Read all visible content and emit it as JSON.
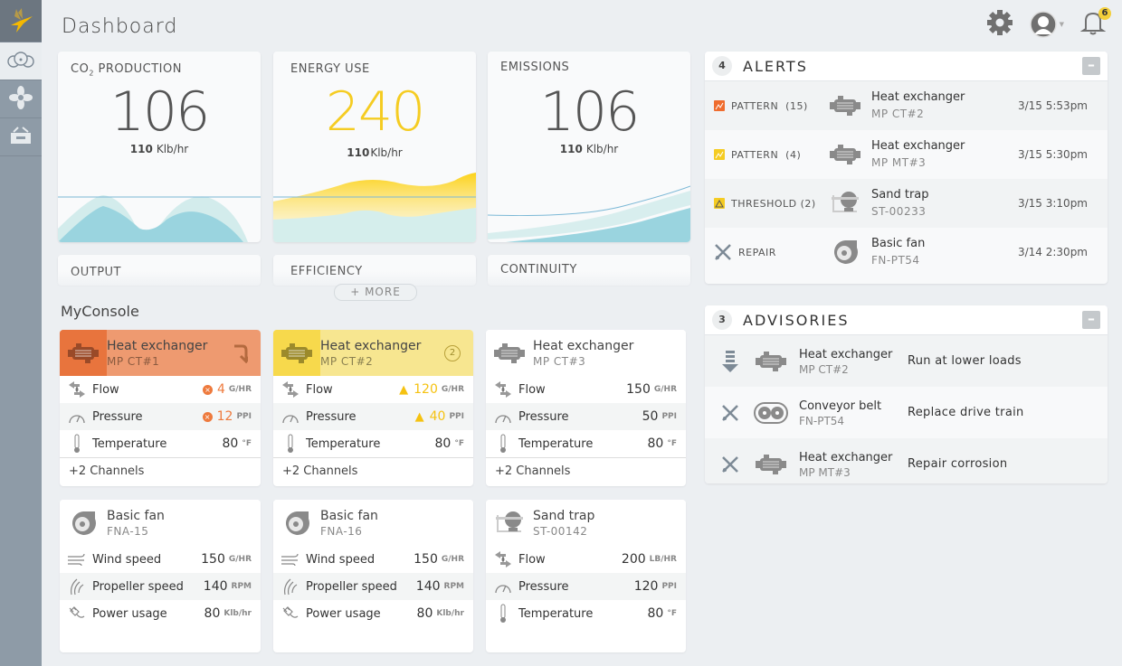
{
  "header": {
    "title": "Dashboard",
    "notifications": "6"
  },
  "sidebar": {
    "items": [
      {
        "icon": "hummingbird-logo-icon"
      },
      {
        "icon": "gauges-icon",
        "active": true
      },
      {
        "icon": "fan-icon"
      },
      {
        "icon": "toolbox-icon"
      }
    ]
  },
  "kpis": [
    {
      "label": "CO",
      "label_sub": "2",
      "label_rest": " PRODUCTION",
      "value": "106",
      "sub_value": "110",
      "unit": "Klb/hr",
      "color": "#555555"
    },
    {
      "label": "ENERGY USE",
      "value": "240",
      "sub_value": "110",
      "unit": "Klb/hr",
      "color": "#f5cc22"
    },
    {
      "label": "EMISSIONS",
      "value": "106",
      "sub_value": "110",
      "unit": "Klb/hr",
      "color": "#555555"
    }
  ],
  "kpis_more": [
    "OUTPUT",
    "EFFICIENCY",
    "CONTINUITY"
  ],
  "more_label": "+ MORE",
  "console": {
    "title": "MyConsole",
    "cards": [
      {
        "name": "Heat exchanger",
        "id": "MP CT#1",
        "icon": "heat-exchanger-icon",
        "status": "error",
        "action": "refresh-icon",
        "rows": [
          {
            "icon": "flow-icon",
            "label": "Flow",
            "value": "4",
            "unit": "G/HR",
            "flag": "error"
          },
          {
            "icon": "pressure-gauge-icon",
            "label": "Pressure",
            "value": "12",
            "unit": "PPI",
            "flag": "error"
          },
          {
            "icon": "thermometer-icon",
            "label": "Temperature",
            "value": "80",
            "unit": "°F"
          }
        ],
        "channels": "+2  Channels"
      },
      {
        "name": "Heat exchanger",
        "id": "MP CT#2",
        "icon": "heat-exchanger-icon",
        "status": "warning",
        "action_count": "2",
        "rows": [
          {
            "icon": "flow-icon",
            "label": "Flow",
            "value": "120",
            "unit": "G/HR",
            "flag": "warning"
          },
          {
            "icon": "pressure-gauge-icon",
            "label": "Pressure",
            "value": "40",
            "unit": "PPI",
            "flag": "warning"
          },
          {
            "icon": "thermometer-icon",
            "label": "Temperature",
            "value": "80",
            "unit": "°F"
          }
        ],
        "channels": "+2  Channels"
      },
      {
        "name": "Heat exchanger",
        "id": "MP CT#3",
        "icon": "heat-exchanger-icon",
        "status": "normal",
        "rows": [
          {
            "icon": "flow-icon",
            "label": "Flow",
            "value": "150",
            "unit": "G/HR"
          },
          {
            "icon": "pressure-gauge-icon",
            "label": "Pressure",
            "value": "50",
            "unit": "PPI"
          },
          {
            "icon": "thermometer-icon",
            "label": "Temperature",
            "value": "80",
            "unit": "°F"
          }
        ],
        "channels": "+2  Channels"
      },
      {
        "name": "Basic fan",
        "id": "FNA-15",
        "icon": "fan-icon",
        "status": "normal",
        "rows": [
          {
            "icon": "wind-icon",
            "label": "Wind speed",
            "value": "150",
            "unit": "G/HR"
          },
          {
            "icon": "propeller-icon",
            "label": "Propeller speed",
            "value": "140",
            "unit": "RPM"
          },
          {
            "icon": "plug-icon",
            "label": "Power usage",
            "value": "80",
            "unit": "Klb/hr"
          }
        ]
      },
      {
        "name": "Basic fan",
        "id": "FNA-16",
        "icon": "fan-icon",
        "status": "normal",
        "rows": [
          {
            "icon": "wind-icon",
            "label": "Wind speed",
            "value": "150",
            "unit": "G/HR"
          },
          {
            "icon": "propeller-icon",
            "label": "Propeller speed",
            "value": "140",
            "unit": "RPM"
          },
          {
            "icon": "plug-icon",
            "label": "Power usage",
            "value": "80",
            "unit": "Klb/hr"
          }
        ]
      },
      {
        "name": "Sand trap",
        "id": "ST-00142",
        "icon": "sand-trap-icon",
        "status": "normal",
        "rows": [
          {
            "icon": "flow-icon",
            "label": "Flow",
            "value": "200",
            "unit": "LB/HR"
          },
          {
            "icon": "pressure-gauge-icon",
            "label": "Pressure",
            "value": "120",
            "unit": "PPI"
          },
          {
            "icon": "thermometer-icon",
            "label": "Temperature",
            "value": "80",
            "unit": "°F"
          }
        ]
      }
    ]
  },
  "alerts": {
    "count": "4",
    "title": "ALERTS",
    "items": [
      {
        "type": "PATTERN  (15)",
        "type_icon": "pattern-icon",
        "type_color": "#ef6c2e",
        "device": "Heat exchanger",
        "id": "MP CT#2",
        "device_icon": "heat-exchanger-icon",
        "time": "3/15 5:53pm"
      },
      {
        "type": "PATTERN  (4)",
        "type_icon": "pattern-icon",
        "type_color": "#f5cc22",
        "device": "Heat exchanger",
        "id": "MP MT#3",
        "device_icon": "heat-exchanger-icon",
        "time": "3/15 5:30pm"
      },
      {
        "type": "THRESHOLD (2)",
        "type_icon": "threshold-icon",
        "type_color": "#f5cc22",
        "device": "Sand trap",
        "id": "ST-00233",
        "device_icon": "sand-trap-icon",
        "time": "3/15 3:10pm"
      },
      {
        "type": "REPAIR",
        "type_icon": "repair-icon",
        "device": "Basic fan",
        "id": "FN-PT54",
        "device_icon": "fan-icon",
        "time": "3/14 2:30pm"
      }
    ]
  },
  "advisories": {
    "count": "3",
    "title": "ADVISORIES",
    "items": [
      {
        "icon": "lower-load-icon",
        "device": "Heat exchanger",
        "id": "MP CT#2",
        "device_icon": "heat-exchanger-icon",
        "action": "Run at lower loads"
      },
      {
        "icon": "repair-icon",
        "device": "Conveyor belt",
        "id": "FN-PT54",
        "device_icon": "conveyor-belt-icon",
        "action": "Replace drive train"
      },
      {
        "icon": "repair-icon",
        "device": "Heat exchanger",
        "id": "MP MT#3",
        "device_icon": "heat-exchanger-icon",
        "action": "Repair corrosion"
      }
    ]
  }
}
